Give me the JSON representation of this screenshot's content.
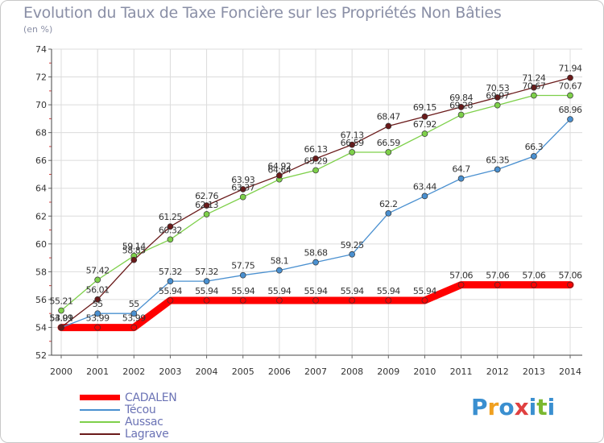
{
  "chart_data": {
    "type": "line",
    "title": "Evolution du Taux de Taxe Foncière sur les Propriétés Non Bâties",
    "ylabel": "(en %)",
    "xlabel": "",
    "ylim": [
      52,
      74
    ],
    "yticks": [
      52,
      54,
      56,
      58,
      60,
      62,
      64,
      66,
      68,
      70,
      72,
      74
    ],
    "categories": [
      "2000",
      "2001",
      "2002",
      "2003",
      "2004",
      "2005",
      "2006",
      "2007",
      "2008",
      "2009",
      "2010",
      "2011",
      "2012",
      "2013",
      "2014"
    ],
    "series": [
      {
        "name": "CADALEN",
        "color": "#ff0000",
        "values": [
          53.99,
          53.99,
          53.99,
          55.94,
          55.94,
          55.94,
          55.94,
          55.94,
          55.94,
          55.94,
          55.94,
          57.06,
          57.06,
          57.06,
          57.06
        ],
        "labels": [
          "53.99",
          "53.99",
          "53.99",
          "55.94",
          "55.94",
          "55.94",
          "55.94",
          "55.94",
          "55.94",
          "55.94",
          "55.94",
          "57.06",
          "57.06",
          "57.06",
          "57.06"
        ]
      },
      {
        "name": "Técou",
        "color": "#4a90d0",
        "values": [
          53.99,
          55,
          55,
          57.32,
          57.32,
          57.75,
          58.1,
          58.68,
          59.25,
          62.2,
          63.44,
          64.7,
          65.35,
          66.3,
          68.96
        ],
        "labels": [
          "53.99",
          "55",
          "55",
          "57.32",
          "57.32",
          "57.75",
          "58.1",
          "58.68",
          "59.25",
          "62.2",
          "63.44",
          "64.7",
          "65.35",
          "66.3",
          "68.96"
        ]
      },
      {
        "name": "Aussac",
        "color": "#7ed04a",
        "values": [
          55.21,
          57.42,
          59.14,
          60.32,
          62.13,
          63.37,
          64.64,
          65.29,
          66.59,
          66.59,
          67.92,
          69.28,
          69.97,
          70.67,
          70.67
        ],
        "labels": [
          "55.21",
          "57.42",
          "59.14",
          "60.32",
          "62.13",
          "63.37",
          "64.64",
          "65.29",
          "66.59",
          "66.59",
          "67.92",
          "69.28",
          "69.97",
          "70.67",
          "70.67"
        ]
      },
      {
        "name": "Lagrave",
        "color": "#6a1a1a",
        "values": [
          54.01,
          56.01,
          58.85,
          61.25,
          62.76,
          63.93,
          64.92,
          66.13,
          67.13,
          68.47,
          69.15,
          69.84,
          70.53,
          71.24,
          71.94
        ],
        "labels": [
          "54.01",
          "56.01",
          "58.85",
          "61.25",
          "62.76",
          "63.93",
          "64.92",
          "66.13",
          "67.13",
          "68.47",
          "69.15",
          "69.84",
          "70.53",
          "71.24",
          "71.94"
        ]
      }
    ]
  },
  "brand": {
    "letters": [
      "P",
      "r",
      "o",
      "x",
      "i",
      "t",
      "i"
    ],
    "colors": [
      "#3a8fd0",
      "#f0a020",
      "#3a8fd0",
      "#e04040",
      "#3a8fd0",
      "#7ab830",
      "#3a8fd0"
    ]
  }
}
